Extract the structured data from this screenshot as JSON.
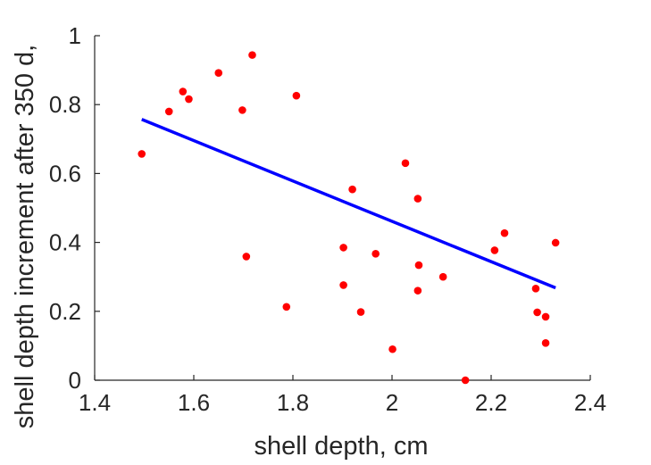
{
  "chart_data": {
    "type": "scatter",
    "xlabel": "shell depth, cm",
    "ylabel": "shell depth increment after 350 d,",
    "xlim": [
      1.4,
      2.4
    ],
    "ylim": [
      0,
      1
    ],
    "xticks": [
      "1.4",
      "1.6",
      "1.8",
      "2",
      "2.2",
      "2.4"
    ],
    "yticks": [
      "0",
      "0.2",
      "0.4",
      "0.6",
      "0.8",
      "1"
    ],
    "grid": false,
    "points_color": "#ff0000",
    "fit_color": "#0000ff",
    "points": [
      {
        "x": 1.495,
        "y": 0.657
      },
      {
        "x": 1.55,
        "y": 0.78
      },
      {
        "x": 1.578,
        "y": 0.838
      },
      {
        "x": 1.59,
        "y": 0.816
      },
      {
        "x": 1.65,
        "y": 0.892
      },
      {
        "x": 1.698,
        "y": 0.784
      },
      {
        "x": 1.706,
        "y": 0.359
      },
      {
        "x": 1.718,
        "y": 0.944
      },
      {
        "x": 1.787,
        "y": 0.213
      },
      {
        "x": 1.807,
        "y": 0.826
      },
      {
        "x": 1.902,
        "y": 0.385
      },
      {
        "x": 1.902,
        "y": 0.276
      },
      {
        "x": 1.92,
        "y": 0.554
      },
      {
        "x": 1.937,
        "y": 0.198
      },
      {
        "x": 1.967,
        "y": 0.367
      },
      {
        "x": 2.001,
        "y": 0.09
      },
      {
        "x": 2.027,
        "y": 0.63
      },
      {
        "x": 2.052,
        "y": 0.527
      },
      {
        "x": 2.054,
        "y": 0.334
      },
      {
        "x": 2.052,
        "y": 0.26
      },
      {
        "x": 2.103,
        "y": 0.3
      },
      {
        "x": 2.148,
        "y": 0.0
      },
      {
        "x": 2.207,
        "y": 0.377
      },
      {
        "x": 2.227,
        "y": 0.427
      },
      {
        "x": 2.29,
        "y": 0.266
      },
      {
        "x": 2.293,
        "y": 0.197
      },
      {
        "x": 2.31,
        "y": 0.184
      },
      {
        "x": 2.31,
        "y": 0.108
      },
      {
        "x": 2.33,
        "y": 0.399
      }
    ],
    "fit_line": {
      "x": [
        1.495,
        2.33
      ],
      "y": [
        0.757,
        0.268
      ]
    }
  }
}
